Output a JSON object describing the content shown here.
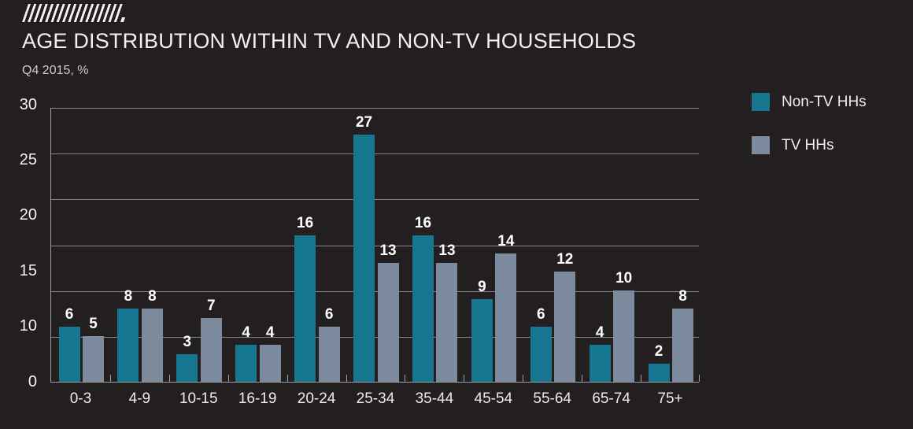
{
  "header": {
    "title": "AGE DISTRIBUTION WITHIN TV AND NON-TV HOUSEHOLDS",
    "subtitle": "Q4 2015, %"
  },
  "colors": {
    "background": "#231f20",
    "non_tv_bar": "#17768f",
    "tv_bar": "#7b8a9c",
    "gridline": "#85878a",
    "axis": "#9b9d9f",
    "title_text": "#f2f0f0",
    "subtitle_text": "#cecccc",
    "value_label_text": "#ffffff"
  },
  "chart_data": {
    "type": "bar",
    "title": "AGE DISTRIBUTION WITHIN TV AND NON-TV HOUSEHOLDS",
    "subtitle": "Q4 2015, %",
    "categories": [
      "0-3",
      "4-9",
      "10-15",
      "16-19",
      "20-24",
      "25-34",
      "35-44",
      "45-54",
      "55-64",
      "65-74",
      "75+"
    ],
    "series": [
      {
        "name": "Non-TV HHs",
        "color": "#17768f",
        "values": [
          6,
          8,
          3,
          4,
          16,
          27,
          16,
          9,
          6,
          4,
          2
        ]
      },
      {
        "name": "TV HHs",
        "color": "#7b8a9c",
        "values": [
          5,
          8,
          7,
          4,
          6,
          13,
          13,
          14,
          12,
          10,
          8
        ]
      }
    ],
    "xlabel": "",
    "ylabel": "",
    "ylim": [
      0,
      30
    ],
    "y_axis_tick_labels": [
      "30",
      "25",
      "20",
      "15",
      "10",
      "0"
    ],
    "gridline_interval": 5,
    "grid": true,
    "data_labels": true,
    "legend_position": "top-right"
  }
}
